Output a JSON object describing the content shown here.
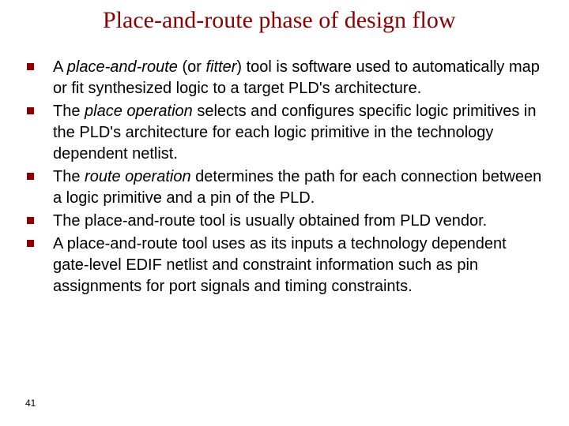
{
  "colors": {
    "title_color": "#8b0000",
    "bullet_color": "#8b0000",
    "text_color": "#000000",
    "background": "#ffffff"
  },
  "typography": {
    "title_font": "Comic Sans MS",
    "title_fontsize_pt": 30,
    "body_font": "Arial",
    "body_fontsize_pt": 20
  },
  "title": "Place-and-route phase of design flow",
  "bullets": [
    {
      "runs": [
        {
          "t": "A "
        },
        {
          "t": "place-and-route",
          "i": true
        },
        {
          "t": " (or "
        },
        {
          "t": "fitter",
          "i": true
        },
        {
          "t": ") tool is software used to automatically map or fit synthesized logic to a target PLD's architecture."
        }
      ]
    },
    {
      "runs": [
        {
          "t": "The "
        },
        {
          "t": "place operation",
          "i": true
        },
        {
          "t": " selects and configures specific logic primitives in the PLD's architecture for each logic primitive in the technology dependent netlist."
        }
      ]
    },
    {
      "runs": [
        {
          "t": "The "
        },
        {
          "t": "route operation",
          "i": true
        },
        {
          "t": " determines the path for each connection between a logic primitive and a pin of the PLD."
        }
      ]
    },
    {
      "runs": [
        {
          "t": "The place-and-route tool is usually obtained from PLD vendor."
        }
      ]
    },
    {
      "runs": [
        {
          "t": "A place-and-route tool uses  as its inputs a technology dependent gate-level EDIF netlist and constraint information such as pin assignments for port signals and timing constraints."
        }
      ]
    }
  ],
  "page_number": "41"
}
